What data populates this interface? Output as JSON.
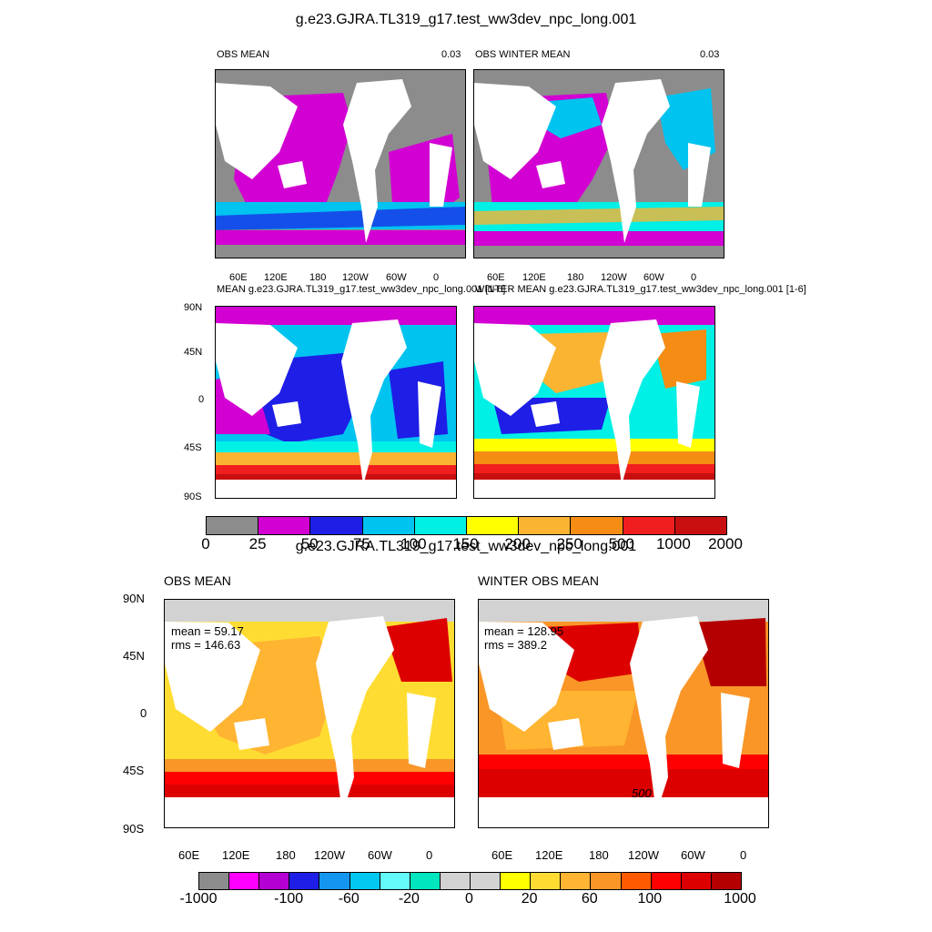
{
  "figure1": {
    "title": "g.e23.GJRA.TL319_g17.test_ww3dev_npc_long.001",
    "panels": [
      {
        "id": "obs_mean",
        "left_title": "OBS MEAN",
        "right_title": "0.03"
      },
      {
        "id": "obs_winter_mean",
        "left_title": "OBS WINTER MEAN",
        "right_title": "0.03"
      },
      {
        "id": "model_mean",
        "left_title": "MEAN g.e23.GJRA.TL319_g17.test_ww3dev_npc_long.001 [1-6]",
        "right_title": ""
      },
      {
        "id": "model_winter_mean",
        "left_title": "WINTER MEAN g.e23.GJRA.TL319_g17.test_ww3dev_npc_long.001 [1-6]",
        "right_title": ""
      }
    ],
    "lon_ticks": [
      "60E",
      "120E",
      "180",
      "120W",
      "60W",
      "0"
    ],
    "lat_ticks": [
      "90N",
      "45N",
      "0",
      "45S",
      "90S"
    ],
    "colorbar": {
      "colors": [
        "#8c8c8c",
        "#d200d2",
        "#1e1ee6",
        "#00c3f0",
        "#00f0e6",
        "#ffff00",
        "#fab432",
        "#f58c14",
        "#f01e1e",
        "#c80f0f"
      ],
      "labels": [
        "0",
        "25",
        "50",
        "75",
        "100",
        "150",
        "200",
        "250",
        "500",
        "1000",
        "2000"
      ]
    }
  },
  "figure2": {
    "title": "g.e23.GJRA.TL319_g17.test_ww3dev_npc_long.001",
    "panels": [
      {
        "id": "diff_mean",
        "left_title": "OBS MEAN",
        "stats": {
          "mean": "mean = 59.17",
          "rms": "rms = 146.63"
        }
      },
      {
        "id": "diff_winter",
        "left_title": "WINTER OBS MEAN",
        "stats": {
          "mean": "mean = 128.95",
          "rms": "rms = 389.2"
        },
        "contour_label": "500"
      }
    ],
    "lon_ticks": [
      "60E",
      "120E",
      "180",
      "120W",
      "60W",
      "0"
    ],
    "lat_ticks": [
      "90N",
      "45N",
      "0",
      "45S",
      "90S"
    ],
    "colorbar": {
      "colors": [
        "#8c8c8c",
        "#ff00ff",
        "#b400d2",
        "#1e1ee6",
        "#1496f0",
        "#00c8f0",
        "#64fafa",
        "#00e6be",
        "#d2d2d2",
        "#d2d2d2",
        "#ffff00",
        "#ffdc32",
        "#ffb432",
        "#fa9628",
        "#ff5a00",
        "#ff0000",
        "#dc0000",
        "#b40000"
      ],
      "labels": [
        "-1000",
        "-100",
        "-60",
        "-20",
        "0",
        "20",
        "60",
        "100",
        "1000"
      ]
    }
  },
  "chart_data": [
    {
      "type": "heatmap",
      "title": "OBS MEAN",
      "annotation": "0.03",
      "xlabel": "",
      "ylabel": "",
      "x_ticks": [
        "60E",
        "120E",
        "180",
        "120W",
        "60W",
        "0"
      ],
      "colorbar_levels": [
        0,
        25,
        50,
        75,
        100,
        150,
        200,
        250,
        500,
        1000,
        2000
      ]
    },
    {
      "type": "heatmap",
      "title": "OBS WINTER MEAN",
      "annotation": "0.03",
      "x_ticks": [
        "60E",
        "120E",
        "180",
        "120W",
        "60W",
        "0"
      ],
      "colorbar_levels": [
        0,
        25,
        50,
        75,
        100,
        150,
        200,
        250,
        500,
        1000,
        2000
      ]
    },
    {
      "type": "heatmap",
      "title": "MEAN g.e23.GJRA.TL319_g17.test_ww3dev_npc_long.001 [1-6]",
      "x_ticks": [
        "60E",
        "120E",
        "180",
        "120W",
        "60W",
        "0"
      ],
      "y_ticks": [
        "90N",
        "45N",
        "0",
        "45S",
        "90S"
      ],
      "colorbar_levels": [
        0,
        25,
        50,
        75,
        100,
        150,
        200,
        250,
        500,
        1000,
        2000
      ]
    },
    {
      "type": "heatmap",
      "title": "WINTER MEAN g.e23.GJRA.TL319_g17.test_ww3dev_npc_long.001 [1-6]",
      "x_ticks": [
        "60E",
        "120E",
        "180",
        "120W",
        "60W",
        "0"
      ],
      "colorbar_levels": [
        0,
        25,
        50,
        75,
        100,
        150,
        200,
        250,
        500,
        1000,
        2000
      ]
    },
    {
      "type": "heatmap",
      "title": "OBS MEAN",
      "stats": {
        "mean": 59.17,
        "rms": 146.63
      },
      "x_ticks": [
        "60E",
        "120E",
        "180",
        "120W",
        "60W",
        "0"
      ],
      "y_ticks": [
        "90N",
        "45N",
        "0",
        "45S",
        "90S"
      ],
      "colorbar_labels": [
        "-1000",
        "-100",
        "-60",
        "-20",
        "0",
        "20",
        "60",
        "100",
        "1000"
      ]
    },
    {
      "type": "heatmap",
      "title": "WINTER OBS MEAN",
      "stats": {
        "mean": 128.95,
        "rms": 389.2
      },
      "contour_label": "500",
      "x_ticks": [
        "60E",
        "120E",
        "180",
        "120W",
        "60W",
        "0"
      ],
      "colorbar_labels": [
        "-1000",
        "-100",
        "-60",
        "-20",
        "0",
        "20",
        "60",
        "100",
        "1000"
      ]
    }
  ]
}
